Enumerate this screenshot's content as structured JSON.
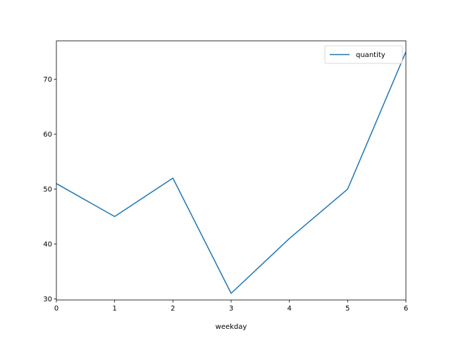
{
  "chart_data": {
    "type": "line",
    "title": "",
    "xlabel": "weekday",
    "ylabel": "",
    "x": [
      0,
      1,
      2,
      3,
      4,
      5,
      6
    ],
    "series": [
      {
        "name": "quantity",
        "values": [
          51,
          45,
          52,
          31,
          41,
          50,
          75
        ],
        "color": "#1f77b4"
      }
    ],
    "xlim": [
      0,
      6
    ],
    "ylim": [
      29.8,
      77
    ],
    "xticks": [
      0,
      1,
      2,
      3,
      4,
      5,
      6
    ],
    "yticks": [
      30,
      40,
      50,
      60,
      70
    ],
    "grid": false,
    "legend": "upper right"
  }
}
